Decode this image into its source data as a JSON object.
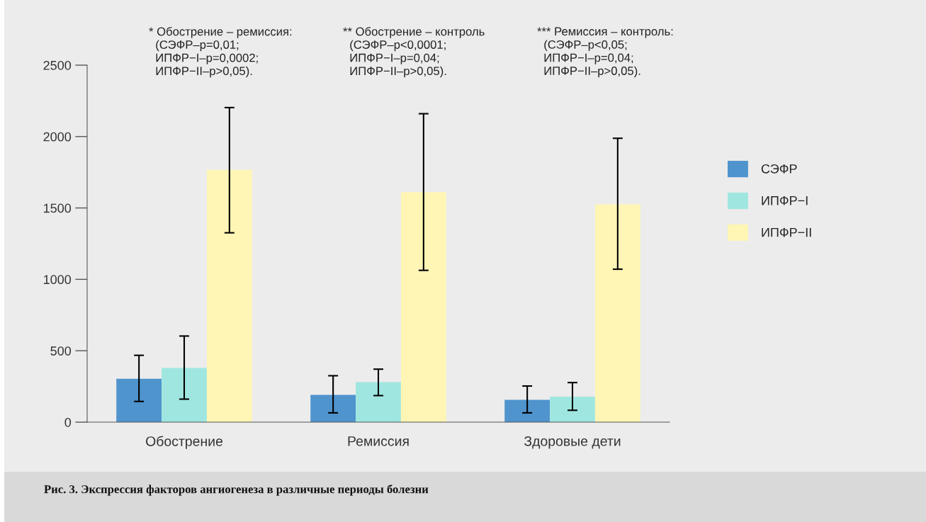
{
  "chart_data": {
    "type": "bar",
    "categories": [
      "Обострение",
      "Ремиссия",
      "Здоровые дети"
    ],
    "series": [
      {
        "name": "СЭФР",
        "color": "#4f94cd",
        "values": [
          304,
          191,
          156
        ],
        "errors": [
          [
            145,
            468
          ],
          [
            65,
            325
          ],
          [
            65,
            253
          ]
        ]
      },
      {
        "name": "ИПФР−I",
        "color": "#a0e6e0",
        "values": [
          379,
          280,
          178
        ],
        "errors": [
          [
            161,
            603
          ],
          [
            186,
            371
          ],
          [
            83,
            277
          ]
        ]
      },
      {
        "name": "ИПФР−II",
        "color": "#fff5b5",
        "values": [
          1767,
          1611,
          1525
        ],
        "errors": [
          [
            1326,
            2203
          ],
          [
            1063,
            2160
          ],
          [
            1071,
            1988
          ]
        ]
      }
    ],
    "ylim": [
      0,
      2500
    ],
    "yticks": [
      0,
      500,
      1000,
      1500,
      2000,
      2500
    ],
    "legend": "right",
    "annotations": [
      "* Обострение – ремиссия:\n  (СЭФР–p=0,01;\n  ИПФР−I–p=0,0002;\n  ИПФР−II–p>0,05).",
      "** Обострение – контроль\n  (СЭФР–p<0,0001;\n  ИПФР−I–p=0,04;\n  ИПФР−II–p>0,05).",
      "*** Ремиссия – контроль:\n  (СЭФР–p<0,05;\n  ИПФР−I–p=0,04;\n  ИПФР−II–p>0,05).",
      "Рис. 3. Экспрессия факторов ангиогенеза в различные периоды болезни"
    ]
  }
}
